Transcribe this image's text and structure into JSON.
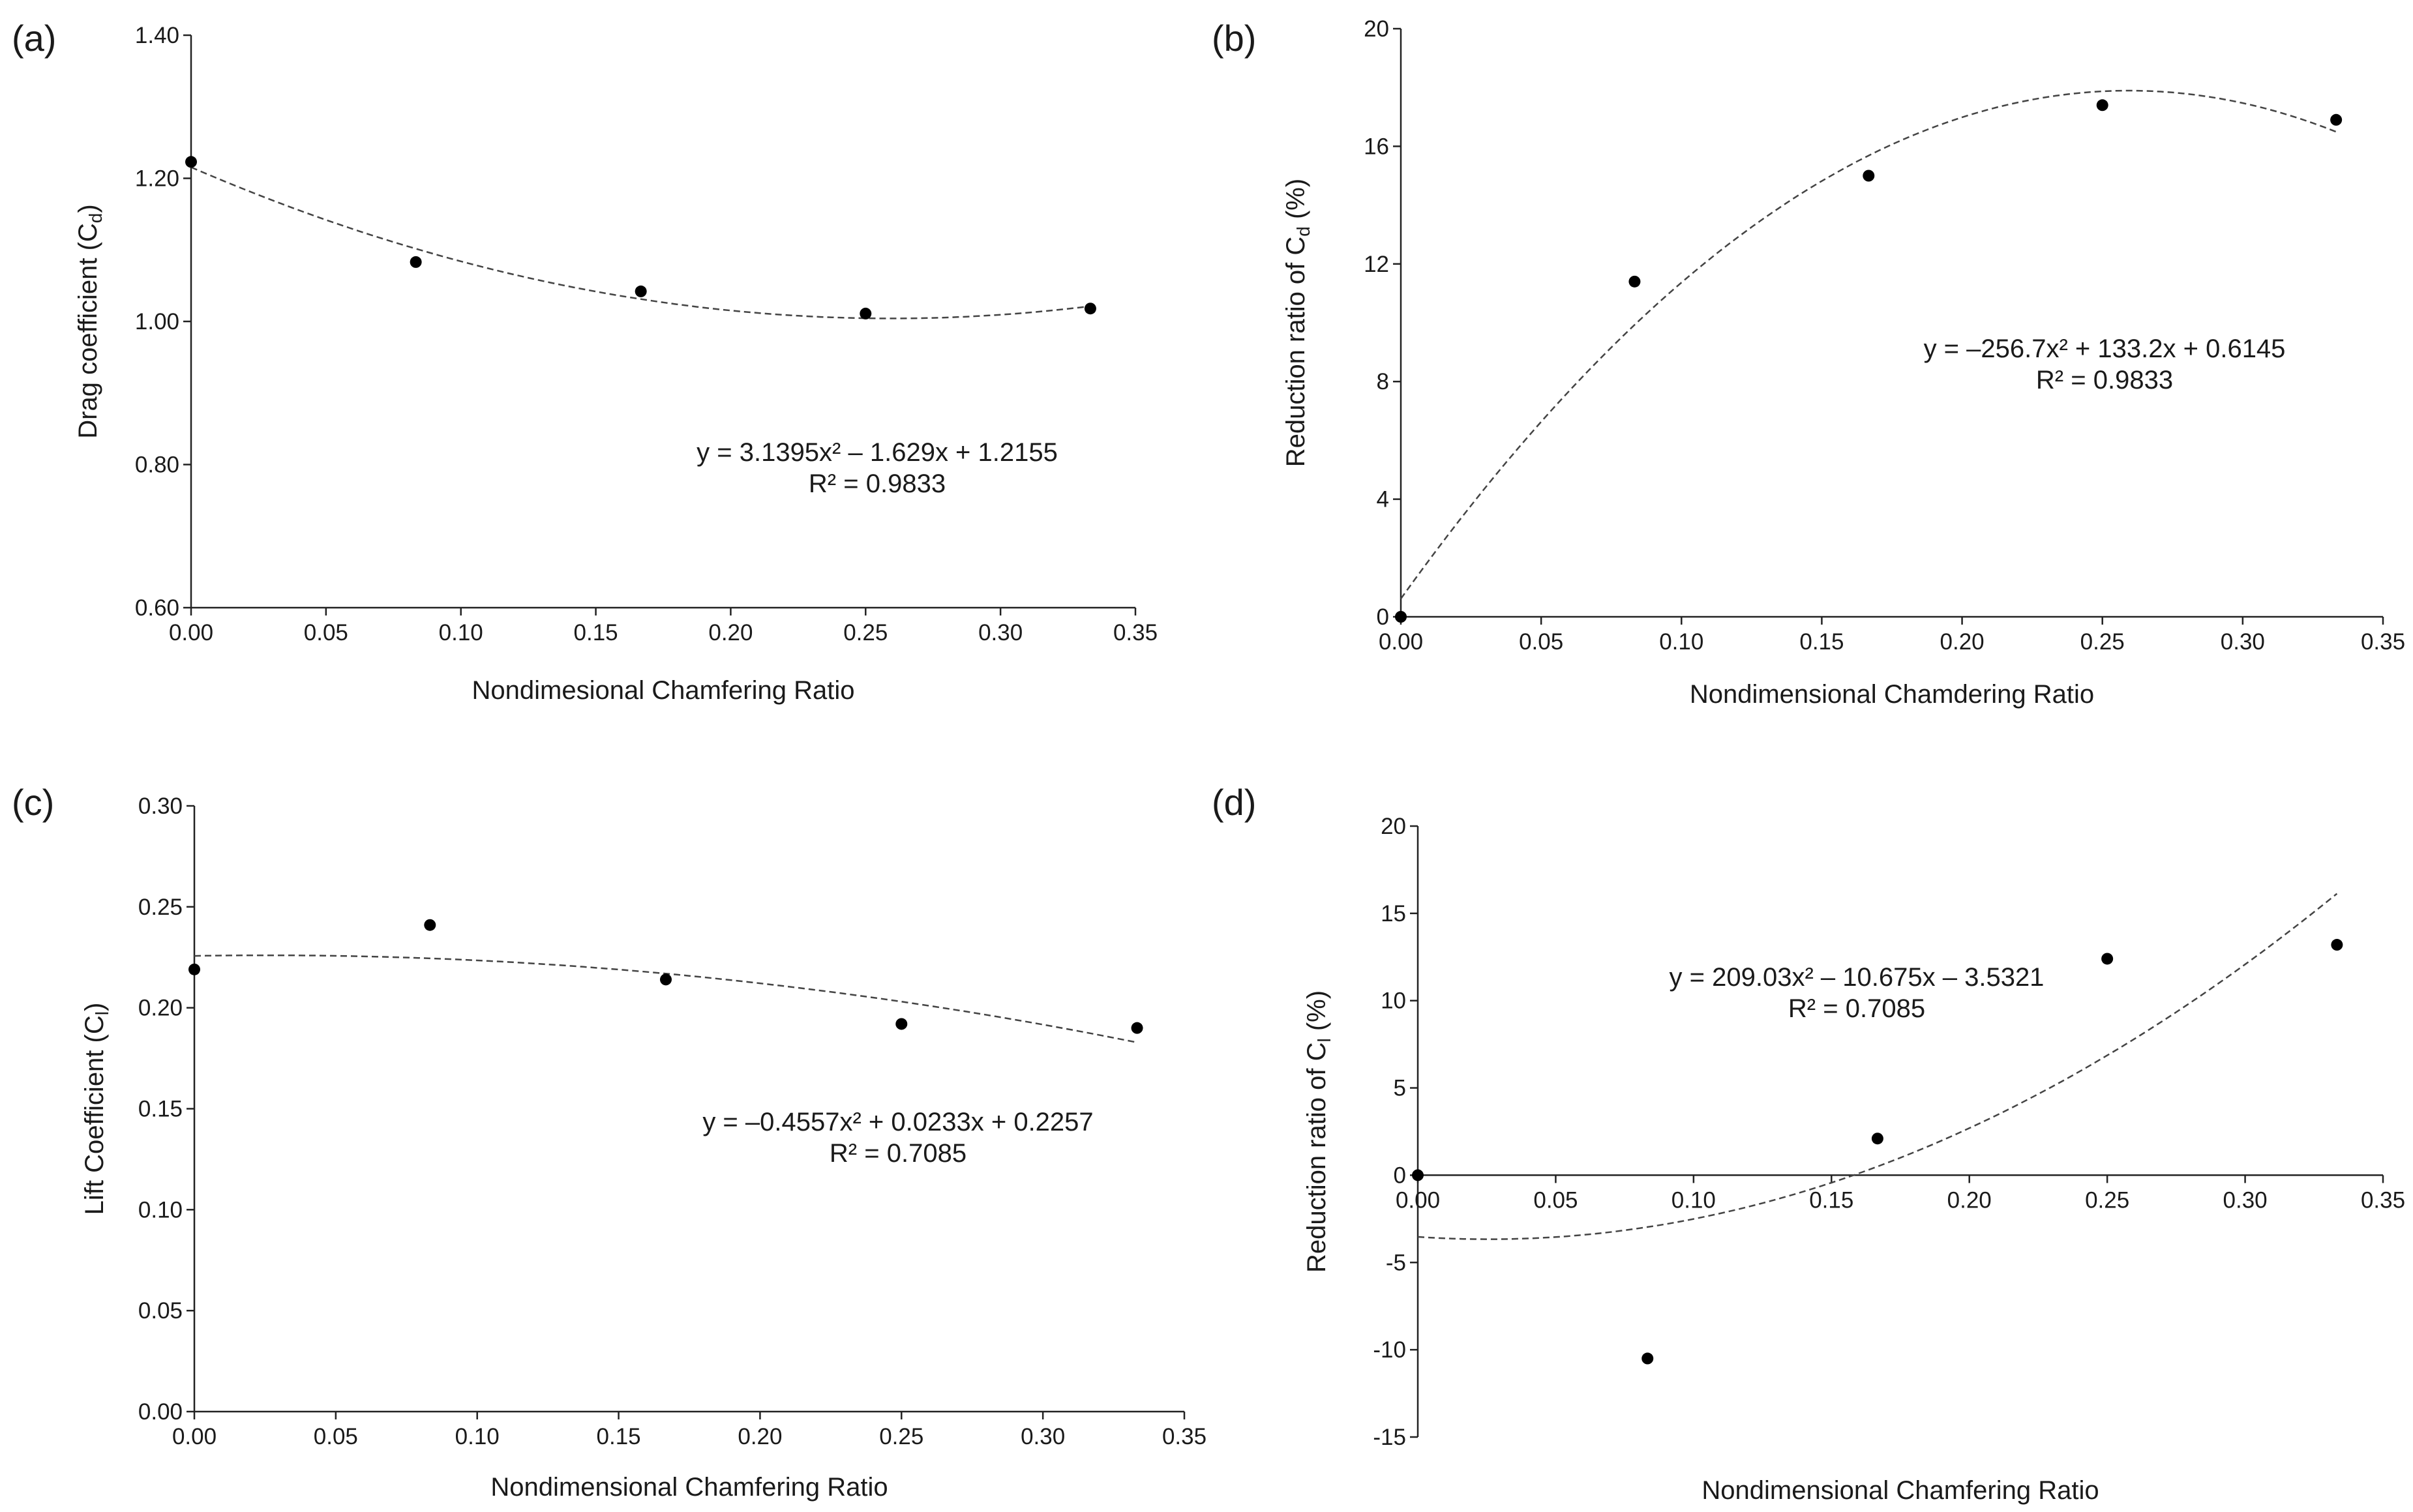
{
  "chart_data": [
    {
      "panel": "(a)",
      "type": "scatter",
      "xlabel": "Nondimesional Chamfering Ratio",
      "ylabel_main": "Drag coefficient (C",
      "ylabel_sub": "d",
      "ylabel_end": ")",
      "xlim": [
        0,
        0.35
      ],
      "ylim": [
        0.6,
        1.4
      ],
      "x_ticks": [
        "0.00",
        "0.05",
        "0.10",
        "0.15",
        "0.20",
        "0.25",
        "0.30",
        "0.35"
      ],
      "y_ticks": [
        "0.60",
        "0.80",
        "1.00",
        "1.20",
        "1.40"
      ],
      "points": [
        {
          "x": 0.0,
          "y": 1.223
        },
        {
          "x": 0.0833,
          "y": 1.083
        },
        {
          "x": 0.1667,
          "y": 1.042
        },
        {
          "x": 0.25,
          "y": 1.011
        },
        {
          "x": 0.3333,
          "y": 1.018
        }
      ],
      "trend": {
        "a": 3.1395,
        "b": -1.629,
        "c": 1.2155
      },
      "equation": "y = 3.1395x² – 1.629x + 1.2155",
      "r2": "R² = 0.9833"
    },
    {
      "panel": "(b)",
      "type": "scatter",
      "xlabel": "Nondimensional Chamdering Ratio",
      "ylabel_main": "Reduction ratio of C",
      "ylabel_sub": "d",
      "ylabel_end": " (%)",
      "xlim": [
        0,
        0.35
      ],
      "ylim": [
        0,
        20
      ],
      "x_ticks": [
        "0.00",
        "0.05",
        "0.10",
        "0.15",
        "0.20",
        "0.25",
        "0.30",
        "0.35"
      ],
      "y_ticks": [
        "0",
        "4",
        "8",
        "12",
        "16",
        "20"
      ],
      "points": [
        {
          "x": 0.0,
          "y": 0.0
        },
        {
          "x": 0.0833,
          "y": 11.4
        },
        {
          "x": 0.1667,
          "y": 15.0
        },
        {
          "x": 0.25,
          "y": 17.4
        },
        {
          "x": 0.3333,
          "y": 16.9
        }
      ],
      "trend": {
        "a": -256.7,
        "b": 133.2,
        "c": 0.6145
      },
      "equation": "y = –256.7x² + 133.2x + 0.6145",
      "r2": "R² = 0.9833"
    },
    {
      "panel": "(c)",
      "type": "scatter",
      "xlabel": "Nondimensional Chamfering Ratio",
      "ylabel_main": "Lift Coefficient (C",
      "ylabel_sub": "l",
      "ylabel_end": ")",
      "xlim": [
        0,
        0.35
      ],
      "ylim": [
        0,
        0.3
      ],
      "x_ticks": [
        "0.00",
        "0.05",
        "0.10",
        "0.15",
        "0.20",
        "0.25",
        "0.30",
        "0.35"
      ],
      "y_ticks": [
        "0.00",
        "0.05",
        "0.10",
        "0.15",
        "0.20",
        "0.25",
        "0.30"
      ],
      "points": [
        {
          "x": 0.0,
          "y": 0.219
        },
        {
          "x": 0.0833,
          "y": 0.241
        },
        {
          "x": 0.1667,
          "y": 0.214
        },
        {
          "x": 0.25,
          "y": 0.192
        },
        {
          "x": 0.3333,
          "y": 0.19
        }
      ],
      "trend": {
        "a": -0.4557,
        "b": 0.0233,
        "c": 0.2257
      },
      "equation": "y = –0.4557x² + 0.0233x + 0.2257",
      "r2": "R² = 0.7085"
    },
    {
      "panel": "(d)",
      "type": "scatter",
      "xlabel": "Nondimensional Chamfering Ratio",
      "ylabel_main": "Reduction ratio of C",
      "ylabel_sub": "l",
      "ylabel_end": " (%)",
      "xlim": [
        0,
        0.35
      ],
      "ylim": [
        -15,
        20
      ],
      "x_ticks": [
        "0.00",
        "0.05",
        "0.10",
        "0.15",
        "0.20",
        "0.25",
        "0.30",
        "0.35"
      ],
      "y_ticks": [
        "-15",
        "-10",
        "-5",
        "0",
        "5",
        "10",
        "15",
        "20"
      ],
      "points": [
        {
          "x": 0.0,
          "y": 0.0
        },
        {
          "x": 0.0833,
          "y": -10.5
        },
        {
          "x": 0.1667,
          "y": 2.1
        },
        {
          "x": 0.25,
          "y": 12.4
        },
        {
          "x": 0.3333,
          "y": 13.2
        }
      ],
      "trend": {
        "a": 209.03,
        "b": -10.675,
        "c": -3.5321
      },
      "equation": "y = 209.03x² – 10.675x – 3.5321",
      "r2": "R² = 0.7085"
    }
  ]
}
